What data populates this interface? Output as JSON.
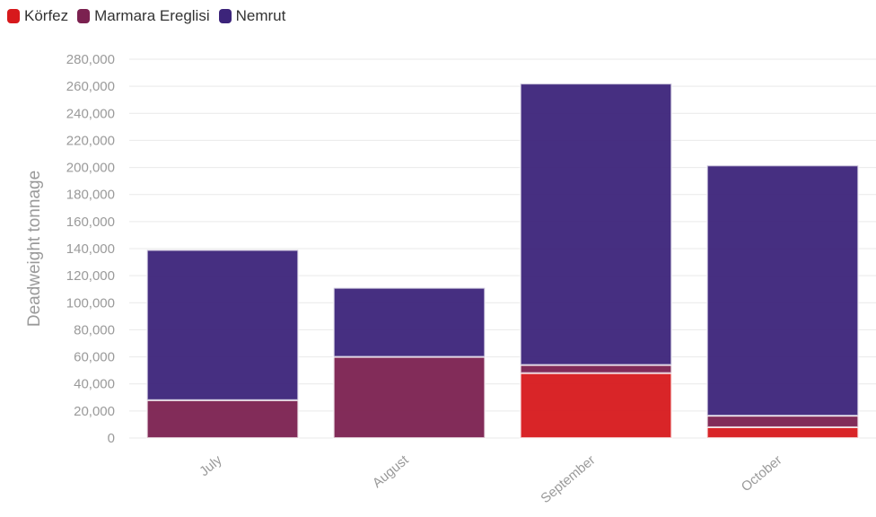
{
  "chart_data": {
    "type": "bar",
    "stacked": true,
    "categories": [
      "July",
      "August",
      "September",
      "October"
    ],
    "series": [
      {
        "name": "Körfez",
        "color": "#d7191c",
        "values": [
          0,
          0,
          48000,
          8000
        ]
      },
      {
        "name": "Marmara Ereglisi",
        "color": "#7b2150",
        "values": [
          28000,
          60000,
          6000,
          8500
        ]
      },
      {
        "name": "Nemrut",
        "color": "#3c247a",
        "values": [
          111000,
          51000,
          208000,
          185000
        ]
      }
    ],
    "ylabel": "Deadweight tonnage",
    "xlabel": "",
    "ylim": [
      0,
      280000
    ],
    "yticks": [
      "0",
      "20,000",
      "40,000",
      "60,000",
      "80,000",
      "100,000",
      "120,000",
      "140,000",
      "160,000",
      "180,000",
      "200,000",
      "220,000",
      "240,000",
      "260,000",
      "280,000"
    ],
    "grid": true,
    "legend_position": "top-left"
  }
}
